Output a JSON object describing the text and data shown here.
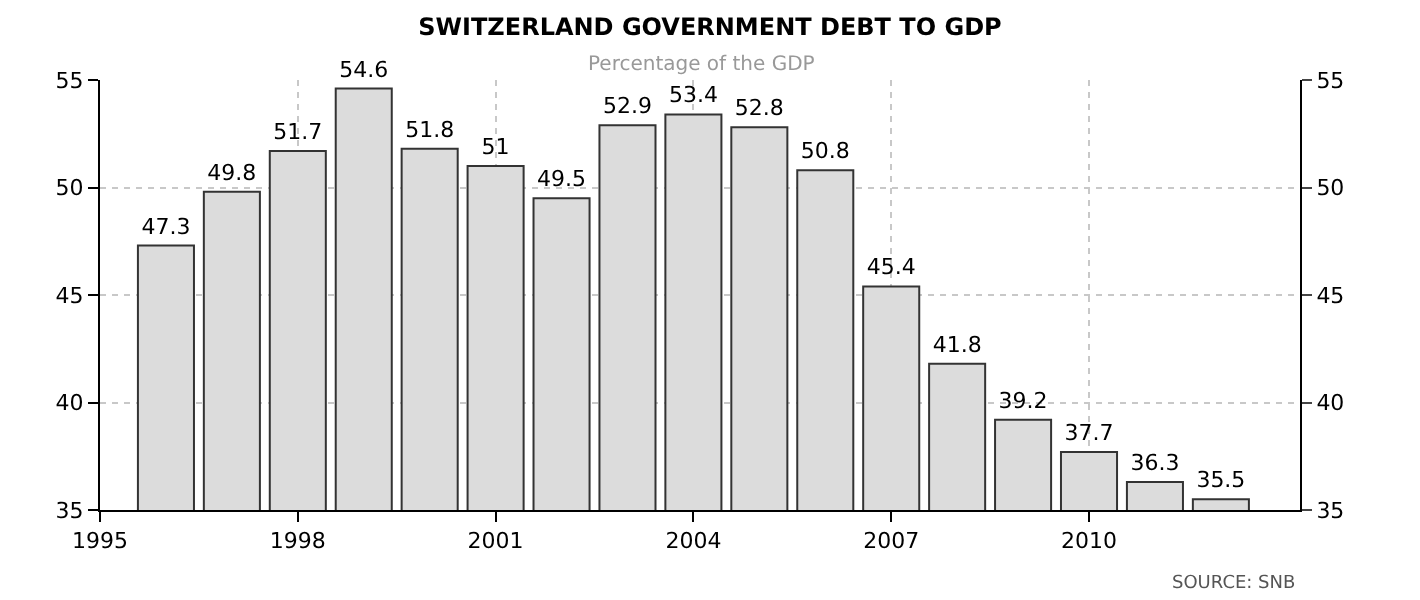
{
  "chart_data": {
    "type": "bar",
    "title": "SWITZERLAND GOVERNMENT DEBT TO GDP",
    "subtitle": "Percentage of the GDP",
    "x": [
      1996,
      1997,
      1998,
      1999,
      2000,
      2001,
      2002,
      2003,
      2004,
      2005,
      2006,
      2007,
      2008,
      2009,
      2010,
      2011,
      2012
    ],
    "values": [
      47.3,
      49.8,
      51.7,
      54.6,
      51.8,
      51,
      49.5,
      52.9,
      53.4,
      52.8,
      50.8,
      45.4,
      41.8,
      39.2,
      37.7,
      36.3,
      35.5
    ],
    "color": "#dcdcdc",
    "data_labels": true,
    "xlim": [
      1995,
      2013.2
    ],
    "xticks": [
      1995,
      1998,
      2001,
      2004,
      2007,
      2010
    ],
    "ylim": [
      35,
      55
    ],
    "yticks": [
      35,
      40,
      45,
      50,
      55
    ],
    "y2lim": [
      35,
      55
    ],
    "y2ticks": [
      35,
      40,
      45,
      50,
      55
    ],
    "grid": true,
    "annotations": [
      "SOURCE: SNB"
    ]
  }
}
